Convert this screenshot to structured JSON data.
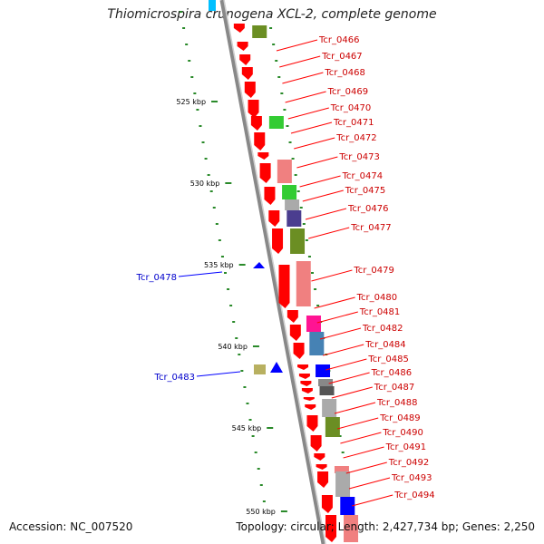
{
  "title": "Thiomicrospira crunogena XCL-2, complete genome",
  "accession": "Accession: NC_007520",
  "topology": "Topology: circular; Length: 2,427,734 bp; Genes: 2,250",
  "ticks": [
    "525 kbp",
    "530 kbp",
    "535 kbp",
    "540 kbp",
    "545 kbp",
    "550 kbp"
  ],
  "genes_right": [
    "Tcr_0466",
    "Tcr_0467",
    "Tcr_0468",
    "Tcr_0469",
    "Tcr_0470",
    "Tcr_0471",
    "Tcr_0472",
    "Tcr_0473",
    "Tcr_0474",
    "Tcr_0475",
    "Tcr_0476",
    "Tcr_0477",
    "Tcr_0479",
    "Tcr_0480",
    "Tcr_0481",
    "Tcr_0482",
    "Tcr_0484",
    "Tcr_0485",
    "Tcr_0486",
    "Tcr_0487",
    "Tcr_0488",
    "Tcr_0489",
    "Tcr_0490",
    "Tcr_0491",
    "Tcr_0492",
    "Tcr_0493",
    "Tcr_0494"
  ],
  "genes_left": [
    "Tcr_0478",
    "Tcr_0483"
  ],
  "colors": {
    "forward_gene": "#ff0000",
    "reverse_gene": "#0000ff",
    "label_forward": "#cc0000",
    "label_reverse": "#0000cc",
    "backbone": "#888888",
    "tick": "#2a8a2a"
  }
}
